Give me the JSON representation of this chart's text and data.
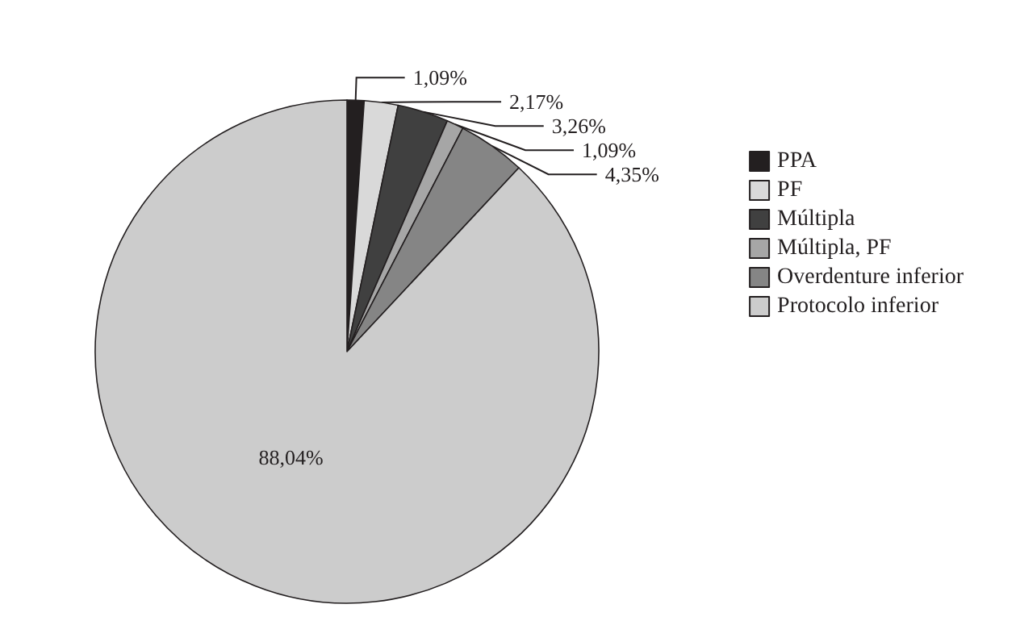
{
  "chart_data": {
    "type": "pie",
    "categories": [
      "PPA",
      "PF",
      "Múltipla",
      "Múltipla, PF",
      "Overdenture inferior",
      "Protocolo inferior"
    ],
    "values": [
      1.09,
      2.17,
      3.26,
      1.09,
      4.35,
      88.04
    ],
    "colors": [
      "#231f20",
      "#d9d9d9",
      "#404040",
      "#a6a6a6",
      "#858585",
      "#cccccc"
    ],
    "value_labels": [
      "1,09%",
      "2,17%",
      "3,26%",
      "1,09%",
      "4,35%",
      "88,04%"
    ],
    "legend": "right"
  }
}
